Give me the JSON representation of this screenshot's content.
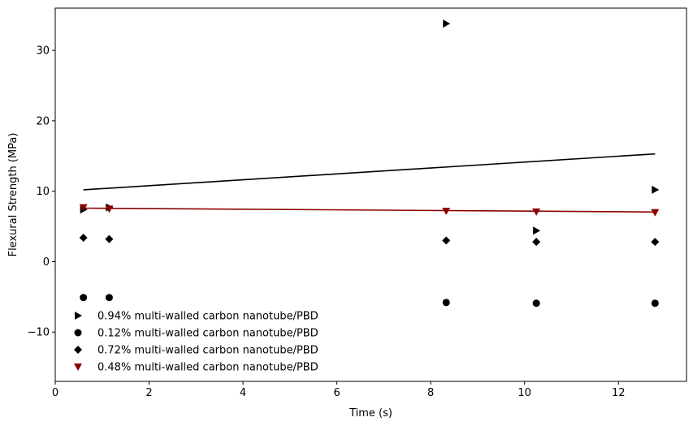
{
  "chart_data": {
    "type": "scatter",
    "title": "",
    "xlabel": "Time (s)",
    "ylabel": "Flexural Strength (MPa)",
    "xlim": [
      0,
      13.45
    ],
    "ylim": [
      -17,
      36
    ],
    "xticks": [
      0,
      2,
      4,
      6,
      8,
      10,
      12
    ],
    "yticks": [
      -10,
      0,
      10,
      20,
      30
    ],
    "grid": false,
    "legend_position": "lower-left",
    "series": [
      {
        "name": "0.94% multi-walled carbon nanotube/PBD",
        "marker": "triangle-right",
        "color": "#000000",
        "x": [
          0.6,
          1.15,
          8.33,
          10.25,
          12.78
        ],
        "y": [
          7.4,
          7.7,
          33.8,
          4.4,
          10.2
        ]
      },
      {
        "name": "0.12% multi-walled carbon nanotube/PBD",
        "marker": "circle",
        "color": "#000000",
        "x": [
          0.6,
          1.15,
          8.33,
          10.25,
          12.78
        ],
        "y": [
          -5.1,
          -5.1,
          -5.8,
          -5.9,
          -5.9
        ]
      },
      {
        "name": "0.72% multi-walled carbon nanotube/PBD",
        "marker": "diamond",
        "color": "#000000",
        "x": [
          0.6,
          1.15,
          8.33,
          10.25,
          12.78
        ],
        "y": [
          3.4,
          3.2,
          3.0,
          2.8,
          2.8
        ]
      },
      {
        "name": "0.48% multi-walled carbon nanotube/PBD",
        "marker": "triangle-down",
        "color": "#8b0000",
        "x": [
          0.6,
          1.15,
          8.33,
          10.25,
          12.78
        ],
        "y": [
          7.7,
          7.5,
          7.2,
          7.1,
          7.0
        ]
      }
    ],
    "trend_lines": [
      {
        "color": "#000000",
        "x": [
          0.6,
          12.78
        ],
        "y": [
          10.2,
          15.3
        ]
      },
      {
        "color": "#8b0000",
        "x": [
          0.6,
          12.78
        ],
        "y": [
          7.6,
          7.05
        ]
      }
    ]
  }
}
